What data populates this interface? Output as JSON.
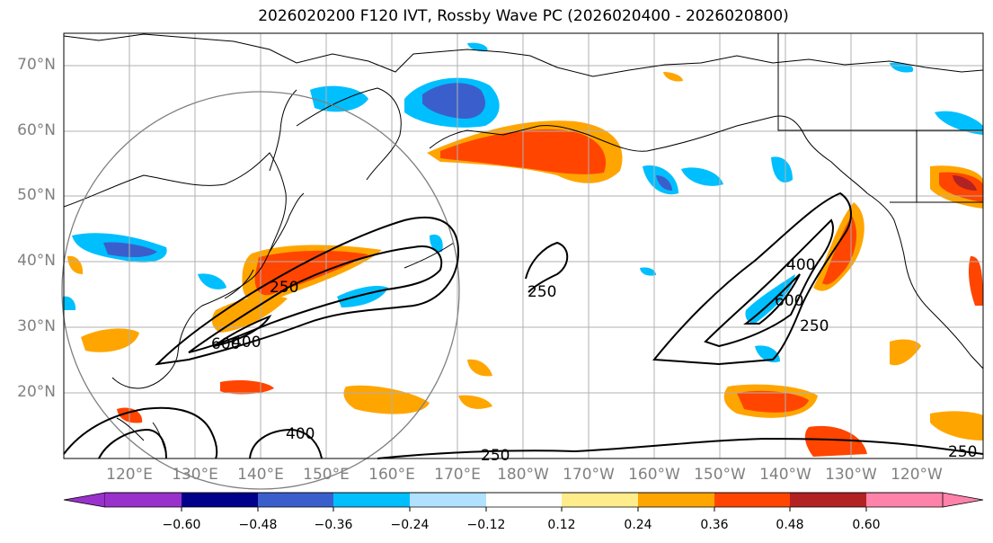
{
  "title": "2026020200 F120 IVT, Rossby Wave PC (2026020400 - 2026020800)",
  "map": {
    "lat_labels": [
      "70°N",
      "60°N",
      "50°N",
      "40°N",
      "30°N",
      "20°N"
    ],
    "lon_labels": [
      "120°E",
      "130°E",
      "140°E",
      "150°E",
      "160°E",
      "170°E",
      "180°W",
      "170°W",
      "160°W",
      "150°W",
      "140°W",
      "130°W",
      "120°W"
    ],
    "contour_labels": [
      "250",
      "400",
      "600",
      "250",
      "600",
      "400",
      "250",
      "250",
      "400",
      "250"
    ]
  },
  "colorbar": {
    "ticks": [
      "−0.60",
      "−0.48",
      "−0.36",
      "−0.24",
      "−0.12",
      "0.12",
      "0.24",
      "0.36",
      "0.48",
      "0.60"
    ],
    "colors": [
      "#9932cc",
      "#00008b",
      "#3a5fcd",
      "#00bfff",
      "#b0e2ff",
      "#ffffff",
      "#ffec8b",
      "#ffa500",
      "#ff4500",
      "#b22222",
      "#ff82ab"
    ]
  }
}
